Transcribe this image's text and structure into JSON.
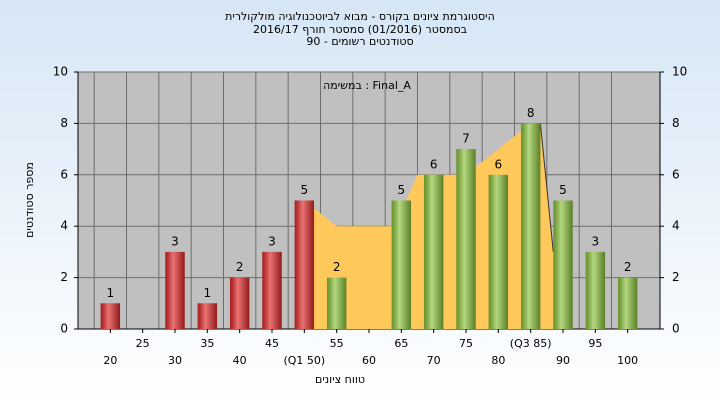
{
  "chart_data": {
    "type": "histogram",
    "title": "היסטוגרמת ציונים בקורס - מבוא לביוטכנולוגיה מולקולרית",
    "subtitle": "בסמסטר  (01/2016)  סמסטר חורף 2016/17",
    "subtitle2": "סטודנטים רשומים - 90",
    "annotation": "במשימה : Final_A",
    "y_label": "מספר סטודנטים",
    "x_label": "טווח ציונים",
    "x": [
      20,
      25,
      30,
      35,
      40,
      45,
      50,
      55,
      60,
      65,
      70,
      75,
      80,
      85,
      90,
      95,
      100
    ],
    "values": [
      1,
      0,
      3,
      1,
      2,
      3,
      5,
      2,
      0,
      5,
      6,
      7,
      6,
      8,
      5,
      3,
      2
    ],
    "colors": [
      "#e02828",
      "#e02828",
      "#e02828",
      "#e02828",
      "#e02828",
      "#e02828",
      "#e02828",
      "#8cc43c",
      "#8cc43c",
      "#8cc43c",
      "#8cc43c",
      "#8cc43c",
      "#8cc43c",
      "#8cc43c",
      "#8cc43c",
      "#8cc43c",
      "#8cc43c"
    ],
    "area": {
      "x": [
        50,
        55,
        64,
        67.5,
        75,
        80,
        85,
        86.5,
        88.5,
        88.5
      ],
      "values": [
        5,
        4,
        4,
        6,
        6,
        7,
        8,
        8,
        3,
        0
      ],
      "color": "#ffc85a"
    },
    "xlim": [
      15,
      105
    ],
    "xticks": [
      20,
      25,
      30,
      35,
      40,
      45,
      {
        "value": 50,
        "label": "(Q1 50)"
      },
      55,
      60,
      65,
      70,
      75,
      80,
      {
        "value": 85,
        "label": "(Q3 85)"
      },
      90,
      95,
      100
    ],
    "ylim": [
      0,
      10
    ],
    "yticks": [
      0,
      2,
      4,
      6,
      8,
      10
    ],
    "y2lim": [
      0,
      10
    ],
    "y2ticks": [
      0,
      2,
      4,
      6,
      8,
      10
    ],
    "grid": true
  }
}
